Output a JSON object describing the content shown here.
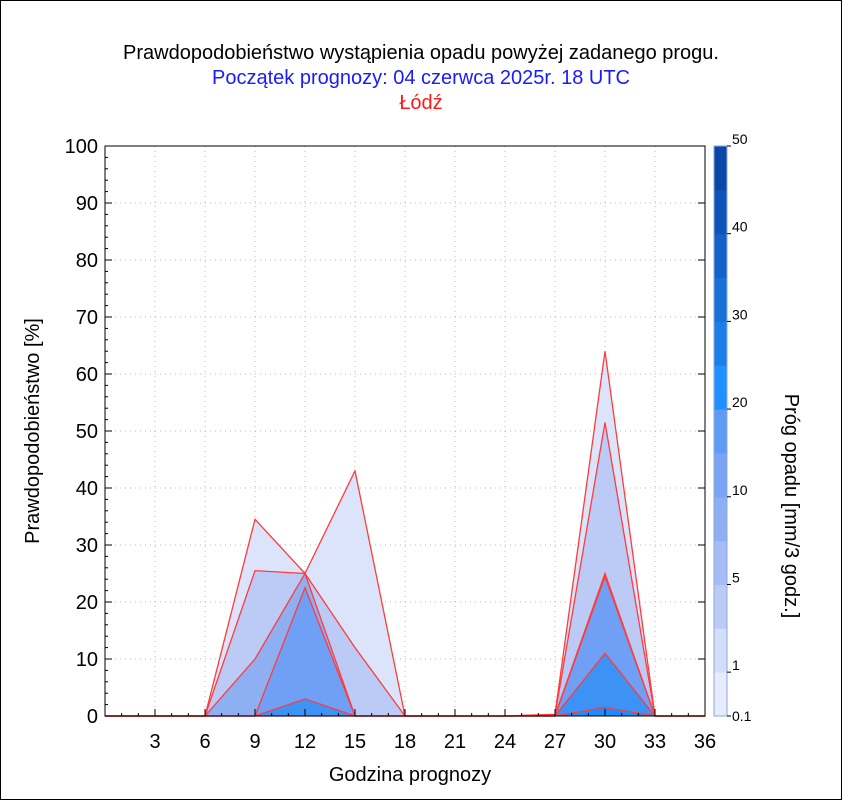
{
  "title": "Prawdopodobieństwo wystąpienia opadu powyżej zadanego progu.",
  "subtitle": "Początek prognozy: 04 czerwca 2025r. 18 UTC",
  "location": "Łódź",
  "colors": {
    "title": "#000000",
    "subtitle": "#1a1aff",
    "location": "#ff1a1a",
    "outline": "#ff3b3b"
  },
  "chart_data": {
    "type": "area",
    "xlabel": "Godzina prognozy",
    "ylabel": "Prawdopodobieństwo [%]",
    "xlim": [
      0,
      36
    ],
    "ylim": [
      0,
      100
    ],
    "x_ticks": [
      3,
      6,
      9,
      12,
      15,
      18,
      21,
      24,
      27,
      30,
      33,
      36
    ],
    "y_ticks": [
      0,
      10,
      20,
      30,
      40,
      50,
      60,
      70,
      80,
      90,
      100
    ],
    "grid": true,
    "x": [
      0,
      3,
      6,
      9,
      12,
      15,
      18,
      21,
      24,
      27,
      30,
      33,
      36
    ],
    "series": [
      {
        "name": "0.1",
        "color": "#dce4fb",
        "values": [
          0,
          0,
          0,
          34.5,
          25,
          43,
          0,
          0,
          0,
          0.3,
          64,
          0,
          0
        ]
      },
      {
        "name": "1",
        "color": "#bccbf6",
        "values": [
          0,
          0,
          0,
          25.5,
          25,
          12,
          0,
          0,
          0,
          0.2,
          51.5,
          0,
          0
        ]
      },
      {
        "name": "5",
        "color": "#8eaff2",
        "values": [
          0,
          0,
          0,
          10,
          25,
          0,
          0,
          0,
          0,
          0.1,
          25,
          0,
          0
        ]
      },
      {
        "name": "10",
        "color": "#6fa0f5",
        "values": [
          0,
          0,
          0,
          0,
          22.5,
          0,
          0,
          0,
          0,
          0,
          24.5,
          0,
          0
        ]
      },
      {
        "name": "20",
        "color": "#3d93f5",
        "values": [
          0,
          0,
          0,
          0,
          3,
          0,
          0,
          0,
          0,
          0,
          11,
          0,
          0
        ]
      },
      {
        "name": "30",
        "color": "#1a8cff",
        "values": [
          0,
          0,
          0,
          0,
          0,
          0,
          0,
          0,
          0,
          0,
          1.5,
          0,
          0
        ]
      }
    ],
    "colorbar": {
      "label": "Próg opadu [mm/3 godz.]",
      "tick_labels": [
        "0.1",
        "1",
        "5",
        "10",
        "20",
        "30",
        "40",
        "50"
      ],
      "colors": [
        "#e6ecfd",
        "#d3defa",
        "#bccbf6",
        "#a5bcf4",
        "#8eaff2",
        "#78a4f3",
        "#5f9bf4",
        "#1e90ff",
        "#1a7fe8",
        "#1670d8",
        "#1262c8",
        "#0e54b8",
        "#0a47a8"
      ]
    }
  }
}
